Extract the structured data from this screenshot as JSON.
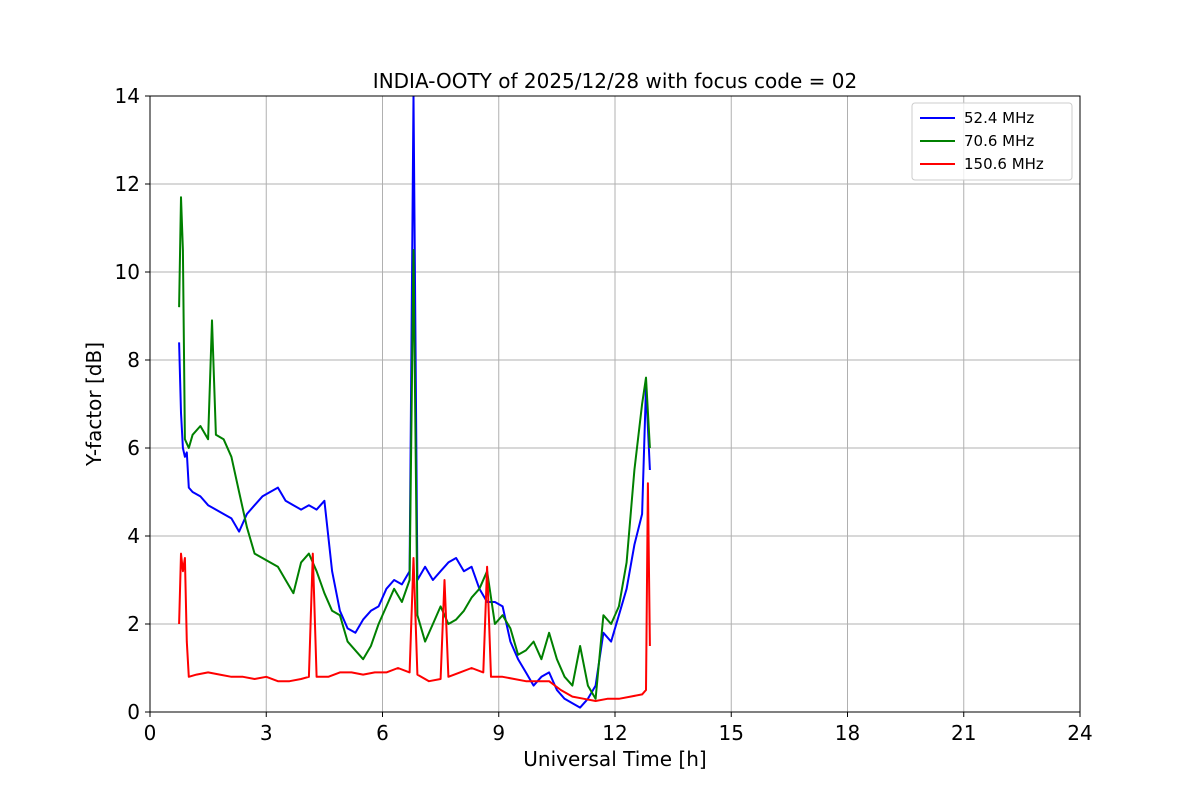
{
  "chart_data": {
    "type": "line",
    "title": "INDIA-OOTY of 2025/12/28 with focus code = 02",
    "xlabel": "Universal Time [h]",
    "ylabel": "Y-factor [dB]",
    "xlim": [
      0,
      24
    ],
    "ylim": [
      0,
      14
    ],
    "xticks": [
      0,
      3,
      6,
      9,
      12,
      15,
      18,
      21,
      24
    ],
    "yticks": [
      0,
      2,
      4,
      6,
      8,
      10,
      12,
      14
    ],
    "grid": true,
    "legend_position": "top-right",
    "series": [
      {
        "name": "52.4 MHz",
        "legend_label": "  52.4 MHz",
        "color": "#0000ff",
        "x": [
          0.75,
          0.8,
          0.85,
          0.9,
          0.95,
          1.0,
          1.1,
          1.3,
          1.5,
          1.7,
          1.9,
          2.1,
          2.3,
          2.5,
          2.7,
          2.9,
          3.1,
          3.3,
          3.5,
          3.7,
          3.9,
          4.1,
          4.3,
          4.5,
          4.7,
          4.9,
          5.1,
          5.3,
          5.5,
          5.7,
          5.9,
          6.1,
          6.3,
          6.5,
          6.7,
          6.8,
          6.9,
          7.1,
          7.3,
          7.5,
          7.7,
          7.9,
          8.1,
          8.3,
          8.5,
          8.7,
          8.9,
          9.1,
          9.3,
          9.5,
          9.7,
          9.9,
          10.1,
          10.3,
          10.5,
          10.7,
          10.9,
          11.1,
          11.3,
          11.5,
          11.7,
          11.9,
          12.1,
          12.3,
          12.5,
          12.7,
          12.8,
          12.9
        ],
        "values": [
          8.4,
          6.8,
          6.0,
          5.8,
          5.9,
          5.1,
          5.0,
          4.9,
          4.7,
          4.6,
          4.5,
          4.4,
          4.1,
          4.5,
          4.7,
          4.9,
          5.0,
          5.1,
          4.8,
          4.7,
          4.6,
          4.7,
          4.6,
          4.8,
          3.2,
          2.3,
          1.9,
          1.8,
          2.1,
          2.3,
          2.4,
          2.8,
          3.0,
          2.9,
          3.2,
          14.0,
          3.0,
          3.3,
          3.0,
          3.2,
          3.4,
          3.5,
          3.2,
          3.3,
          2.8,
          2.5,
          2.5,
          2.4,
          1.6,
          1.2,
          0.9,
          0.6,
          0.8,
          0.9,
          0.5,
          0.3,
          0.2,
          0.1,
          0.3,
          0.6,
          1.8,
          1.6,
          2.2,
          2.8,
          3.8,
          4.5,
          7.4,
          5.5
        ]
      },
      {
        "name": "70.6 MHz",
        "legend_label": "  70.6 MHz",
        "color": "#008000",
        "x": [
          0.75,
          0.8,
          0.85,
          0.9,
          1.0,
          1.1,
          1.3,
          1.5,
          1.6,
          1.7,
          1.9,
          2.1,
          2.3,
          2.5,
          2.7,
          2.9,
          3.1,
          3.3,
          3.5,
          3.7,
          3.9,
          4.1,
          4.3,
          4.5,
          4.7,
          4.9,
          5.1,
          5.3,
          5.5,
          5.7,
          5.9,
          6.1,
          6.3,
          6.5,
          6.7,
          6.8,
          6.9,
          7.1,
          7.3,
          7.5,
          7.7,
          7.9,
          8.1,
          8.3,
          8.5,
          8.7,
          8.9,
          9.1,
          9.3,
          9.5,
          9.7,
          9.9,
          10.1,
          10.3,
          10.5,
          10.7,
          10.9,
          11.1,
          11.3,
          11.5,
          11.7,
          11.9,
          12.1,
          12.3,
          12.5,
          12.7,
          12.8,
          12.9
        ],
        "values": [
          9.2,
          11.7,
          10.5,
          6.2,
          6.0,
          6.3,
          6.5,
          6.2,
          8.9,
          6.3,
          6.2,
          5.8,
          5.0,
          4.2,
          3.6,
          3.5,
          3.4,
          3.3,
          3.0,
          2.7,
          3.4,
          3.6,
          3.2,
          2.7,
          2.3,
          2.2,
          1.6,
          1.4,
          1.2,
          1.5,
          2.0,
          2.4,
          2.8,
          2.5,
          3.0,
          10.5,
          2.2,
          1.6,
          2.0,
          2.4,
          2.0,
          2.1,
          2.3,
          2.6,
          2.8,
          3.2,
          2.0,
          2.2,
          1.9,
          1.3,
          1.4,
          1.6,
          1.2,
          1.8,
          1.2,
          0.8,
          0.6,
          1.5,
          0.6,
          0.3,
          2.2,
          2.0,
          2.4,
          3.4,
          5.5,
          7.0,
          7.6,
          6.0
        ]
      },
      {
        "name": "150.6 MHz",
        "legend_label": "  150.6 MHz",
        "color": "#ff0000",
        "x": [
          0.75,
          0.8,
          0.85,
          0.9,
          0.95,
          1.0,
          1.2,
          1.5,
          1.8,
          2.1,
          2.4,
          2.7,
          3.0,
          3.3,
          3.6,
          3.9,
          4.1,
          4.2,
          4.3,
          4.6,
          4.9,
          5.2,
          5.5,
          5.8,
          6.1,
          6.4,
          6.7,
          6.8,
          6.9,
          7.2,
          7.5,
          7.6,
          7.7,
          8.0,
          8.3,
          8.6,
          8.7,
          8.8,
          9.1,
          9.4,
          9.7,
          10.0,
          10.3,
          10.6,
          10.9,
          11.2,
          11.5,
          11.8,
          12.1,
          12.4,
          12.7,
          12.8,
          12.85,
          12.9
        ],
        "values": [
          2.0,
          3.6,
          3.2,
          3.5,
          1.6,
          0.8,
          0.85,
          0.9,
          0.85,
          0.8,
          0.8,
          0.75,
          0.8,
          0.7,
          0.7,
          0.75,
          0.8,
          3.6,
          0.8,
          0.8,
          0.9,
          0.9,
          0.85,
          0.9,
          0.9,
          1.0,
          0.9,
          3.5,
          0.85,
          0.7,
          0.75,
          3.0,
          0.8,
          0.9,
          1.0,
          0.9,
          3.3,
          0.8,
          0.8,
          0.75,
          0.7,
          0.7,
          0.7,
          0.5,
          0.35,
          0.3,
          0.25,
          0.3,
          0.3,
          0.35,
          0.4,
          0.5,
          5.2,
          1.5
        ]
      }
    ]
  }
}
